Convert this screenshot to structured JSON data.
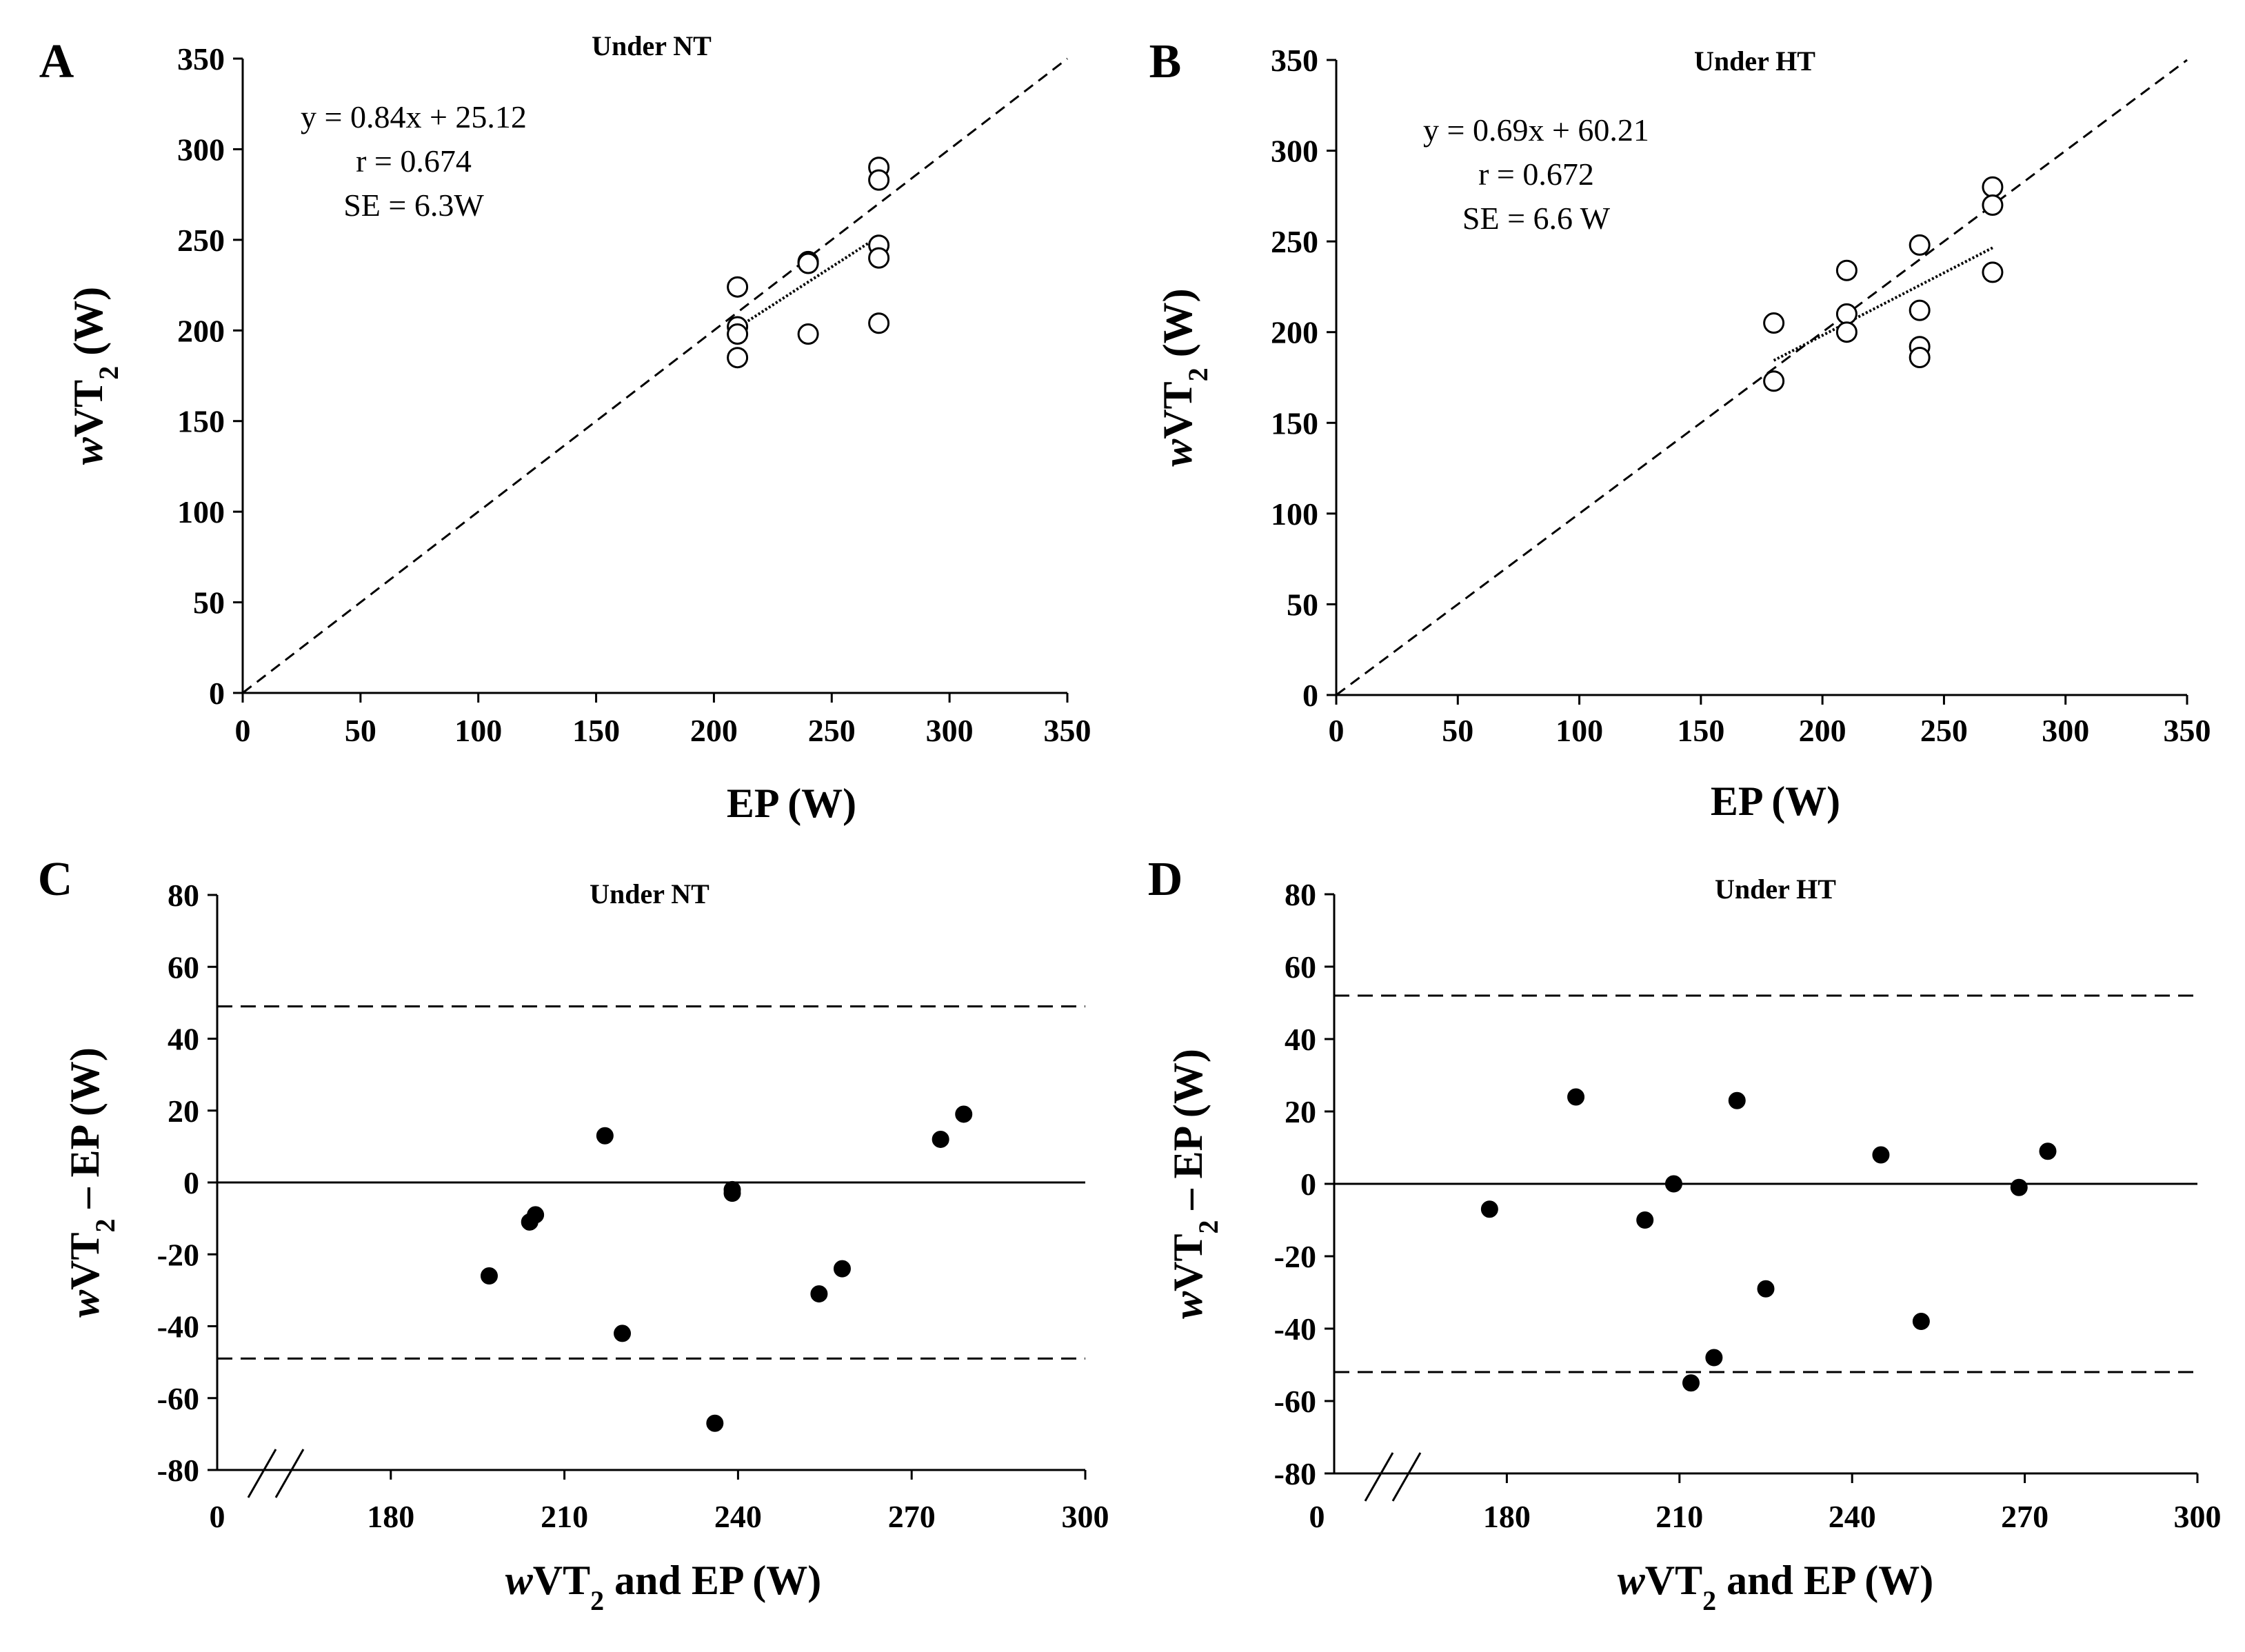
{
  "chart_data": [
    {
      "panel": "A",
      "type": "scatter",
      "title": "Under NT",
      "xlabel": "EP (W)",
      "ylabel": {
        "italic": "w",
        "main": "VT",
        "sub": "2",
        "unit": " (W)"
      },
      "xlim": [
        0,
        350
      ],
      "ylim": [
        0,
        350
      ],
      "xticks": [
        "0",
        "50",
        "100",
        "150",
        "200",
        "250",
        "300",
        "350"
      ],
      "yticks": [
        "0",
        "50",
        "100",
        "150",
        "200",
        "250",
        "300",
        "350"
      ],
      "points": [
        [
          210,
          224
        ],
        [
          210,
          202
        ],
        [
          210,
          198
        ],
        [
          210,
          185
        ],
        [
          240,
          238
        ],
        [
          240,
          237
        ],
        [
          240,
          198
        ],
        [
          270,
          290
        ],
        [
          270,
          283
        ],
        [
          270,
          247
        ],
        [
          270,
          240
        ],
        [
          270,
          204
        ]
      ],
      "identity_line": {
        "from": [
          0,
          0
        ],
        "to": [
          350,
          350
        ],
        "style": "dashed"
      },
      "regression_line": {
        "from": [
          210,
          201.5
        ],
        "to": [
          270,
          251.9
        ],
        "style": "dotted"
      },
      "annotation": [
        "y = 0.84x + 25.12",
        "r = 0.674",
        "SE = 6.3W"
      ]
    },
    {
      "panel": "B",
      "type": "scatter",
      "title": "Under HT",
      "xlabel": "EP (W)",
      "ylabel": {
        "italic": "w",
        "main": "VT",
        "sub": "2",
        "unit": " (W)"
      },
      "xlim": [
        0,
        350
      ],
      "ylim": [
        0,
        350
      ],
      "xticks": [
        "0",
        "50",
        "100",
        "150",
        "200",
        "250",
        "300",
        "350"
      ],
      "yticks": [
        "0",
        "50",
        "100",
        "150",
        "200",
        "250",
        "300",
        "350"
      ],
      "points": [
        [
          180,
          205
        ],
        [
          180,
          173
        ],
        [
          210,
          234
        ],
        [
          210,
          210
        ],
        [
          210,
          200
        ],
        [
          240,
          248
        ],
        [
          240,
          212
        ],
        [
          240,
          192
        ],
        [
          240,
          186
        ],
        [
          270,
          280
        ],
        [
          270,
          270
        ],
        [
          270,
          233
        ]
      ],
      "identity_line": {
        "from": [
          0,
          0
        ],
        "to": [
          350,
          350
        ],
        "style": "dashed"
      },
      "regression_line": {
        "from": [
          180,
          184.4
        ],
        "to": [
          270,
          246.5
        ],
        "style": "dotted"
      },
      "annotation": [
        "y = 0.69x + 60.21",
        "r = 0.672",
        "SE = 6.6 W"
      ]
    },
    {
      "panel": "C",
      "type": "scatter",
      "title": "Under NT",
      "xlabel": {
        "italic": "w",
        "main": "VT",
        "sub": "2",
        "unit": " and EP (W)"
      },
      "ylabel": {
        "italic": "w",
        "main": "VT",
        "sub": "2",
        "unit": " – EP (W)"
      },
      "xlim": [
        150,
        300
      ],
      "ylim": [
        -80,
        80
      ],
      "xticks": [
        "0",
        "180",
        "210",
        "240",
        "270",
        "300"
      ],
      "yticks": [
        "-80",
        "-60",
        "-40",
        "-20",
        "0",
        "20",
        "40",
        "60",
        "80"
      ],
      "axis_break": true,
      "points": [
        [
          197,
          -26
        ],
        [
          204,
          -11
        ],
        [
          205,
          -9
        ],
        [
          217,
          13
        ],
        [
          220,
          -42
        ],
        [
          236,
          -67
        ],
        [
          239,
          -3
        ],
        [
          239,
          -2
        ],
        [
          254,
          -31
        ],
        [
          258,
          -24
        ],
        [
          275,
          12
        ],
        [
          279,
          19
        ]
      ],
      "mean_line": 0,
      "limits_of_agreement": [
        49,
        -49
      ]
    },
    {
      "panel": "D",
      "type": "scatter",
      "title": "Under HT",
      "xlabel": {
        "italic": "w",
        "main": "VT",
        "sub": "2",
        "unit": " and EP (W)"
      },
      "ylabel": {
        "italic": "w",
        "main": "VT",
        "sub": "2",
        "unit": " – EP (W)"
      },
      "xlim": [
        150,
        300
      ],
      "ylim": [
        -80,
        80
      ],
      "xticks": [
        "0",
        "180",
        "210",
        "240",
        "270",
        "300"
      ],
      "yticks": [
        "-80",
        "-60",
        "-40",
        "-20",
        "0",
        "20",
        "40",
        "60",
        "80"
      ],
      "axis_break": true,
      "points": [
        [
          177,
          -7
        ],
        [
          192,
          24
        ],
        [
          204,
          -10
        ],
        [
          209,
          0
        ],
        [
          212,
          -55
        ],
        [
          216,
          -48
        ],
        [
          220,
          23
        ],
        [
          225,
          -29
        ],
        [
          245,
          8
        ],
        [
          252,
          -38
        ],
        [
          269,
          -1
        ],
        [
          274,
          9
        ]
      ],
      "mean_line": 0,
      "limits_of_agreement": [
        52,
        -52
      ]
    }
  ]
}
